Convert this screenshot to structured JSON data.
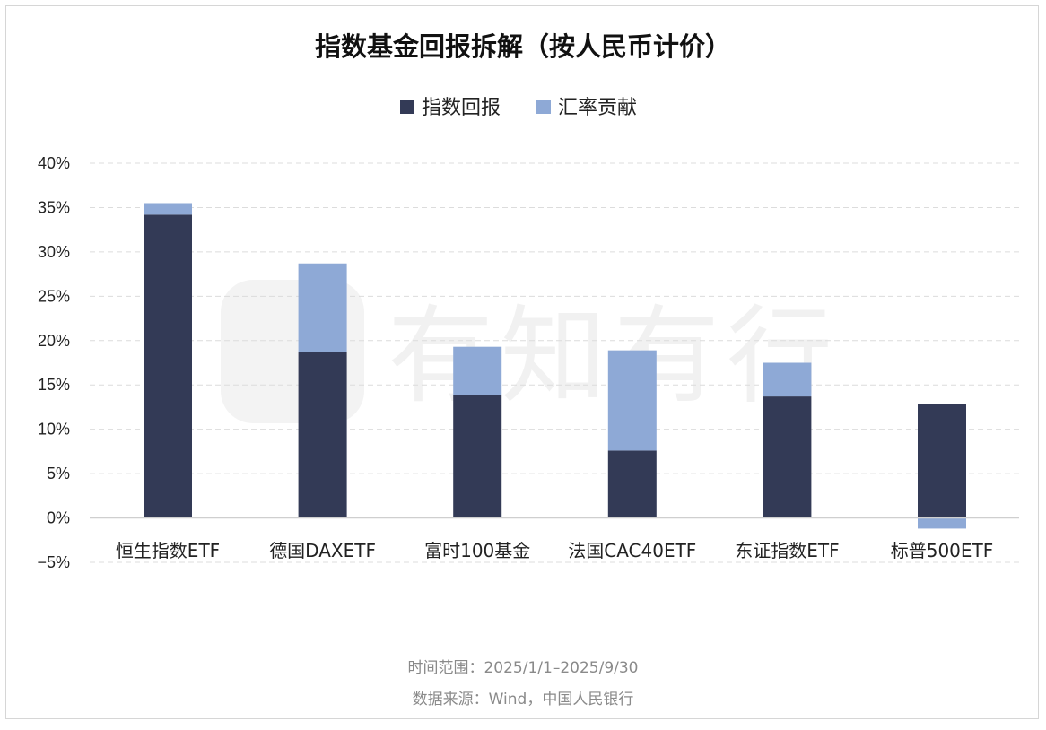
{
  "chart_data": {
    "type": "bar",
    "stacked": true,
    "title": "指数基金回报拆解（按人民币计价）",
    "categories": [
      "恒生指数ETF",
      "德国DAXETF",
      "富时100基金",
      "法国CAC40ETF",
      "东证指数ETF",
      "标普500ETF"
    ],
    "series": [
      {
        "name": "指数回报",
        "color": "#333A56",
        "values": [
          34.2,
          18.7,
          13.9,
          7.6,
          13.7,
          12.8
        ]
      },
      {
        "name": "汇率贡献",
        "color": "#8EA9D6",
        "values": [
          1.3,
          10.0,
          5.4,
          11.3,
          3.8,
          -1.2
        ]
      }
    ],
    "yticks": [
      "40%",
      "35%",
      "30%",
      "25%",
      "20%",
      "15%",
      "10%",
      "5%",
      "0%",
      "−5%"
    ],
    "ylim": [
      -5,
      40
    ],
    "grid": true,
    "legend_position": "top-center",
    "notes": [
      "时间范围：2025/1/1–2025/9/30",
      "数据来源：Wind，中国人民银行"
    ],
    "watermark": "有知有行"
  }
}
